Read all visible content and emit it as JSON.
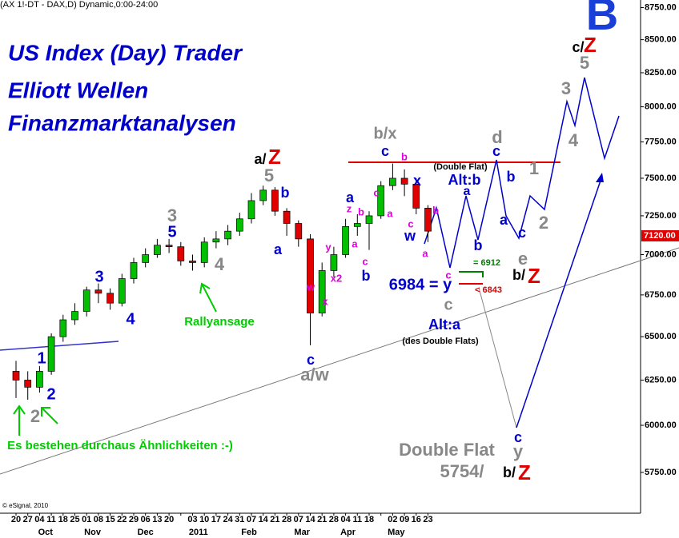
{
  "header": "(AX 1!-DT - DAX,D) Dynamic,0:00-24:00",
  "chart_data": {
    "type": "candlestick",
    "log_scale": true,
    "categories": [
      "20",
      "27",
      "04",
      "11",
      "18",
      "25",
      "01",
      "08",
      "15",
      "22",
      "29",
      "06",
      "13",
      "20",
      null,
      "03",
      "10",
      "17",
      "24",
      "31",
      "07",
      "14",
      "21",
      "28",
      "07",
      "14",
      "21",
      "28",
      "04",
      "11",
      "18",
      null,
      "02",
      "09",
      "16",
      "23"
    ],
    "months": [
      "Oct",
      "Nov",
      "Dec",
      "2011",
      "Feb",
      "Mar",
      "Apr",
      "May"
    ],
    "open": [
      6300,
      6250,
      6210,
      6300,
      6500,
      6600,
      6650,
      6780,
      6760,
      6700,
      6850,
      6950,
      7000,
      7060,
      7050,
      6960,
      6950,
      7080,
      7100,
      7150,
      7230,
      7350,
      7420,
      7280,
      7200,
      7100,
      6640,
      6900,
      7000,
      7180,
      7200,
      7250,
      7450,
      7500,
      7460,
      7300
    ],
    "high": [
      6360,
      6300,
      6330,
      6520,
      6630,
      6700,
      6800,
      6820,
      6790,
      6880,
      6980,
      7040,
      7100,
      7100,
      7080,
      7000,
      7110,
      7150,
      7190,
      7270,
      7400,
      7450,
      7440,
      7300,
      7220,
      7130,
      6950,
      7050,
      7230,
      7260,
      7280,
      7480,
      7600,
      7560,
      7500,
      7320
    ],
    "low": [
      6150,
      6140,
      6180,
      6280,
      6470,
      6570,
      6620,
      6700,
      6660,
      6680,
      6820,
      6920,
      6980,
      7010,
      6930,
      6900,
      6920,
      7040,
      7060,
      7120,
      7200,
      7320,
      7250,
      7120,
      7050,
      6450,
      6620,
      6860,
      6980,
      7120,
      7030,
      7230,
      7420,
      7380,
      7260,
      7080
    ],
    "close": [
      6250,
      6210,
      6300,
      6500,
      6600,
      6650,
      6780,
      6760,
      6700,
      6850,
      6950,
      7000,
      7060,
      7050,
      6960,
      6950,
      7080,
      7100,
      7150,
      7230,
      7350,
      7420,
      7280,
      7200,
      7100,
      6640,
      6900,
      7000,
      7180,
      7200,
      7250,
      7450,
      7500,
      7460,
      7300,
      7150
    ],
    "up_color": "#00c000",
    "down_color": "#e00000",
    "ylim": [
      5550,
      8810
    ],
    "yticks": [
      {
        "value": 5750,
        "label": "5750.00"
      },
      {
        "value": 6000,
        "label": "6000.00"
      },
      {
        "value": 6250,
        "label": "6250.00"
      },
      {
        "value": 6500,
        "label": "6500.00"
      },
      {
        "value": 6750,
        "label": "6750.00"
      },
      {
        "value": 7000,
        "label": "7000.00"
      },
      {
        "value": 7250,
        "label": "7250.00"
      },
      {
        "value": 7500,
        "label": "7500.00"
      },
      {
        "value": 7750,
        "label": "7750.00"
      },
      {
        "value": 8000,
        "label": "8000.00"
      },
      {
        "value": 8250,
        "label": "8250.00"
      },
      {
        "value": 8500,
        "label": "8500.00"
      },
      {
        "value": 8750,
        "label": "8750.00"
      }
    ],
    "last_price": {
      "value": 7120,
      "label": "7120.00"
    }
  },
  "annotations": [
    {
      "text": "US Index (Day) Trader",
      "color": "#0000cc"
    },
    {
      "text": "Elliott Wellen",
      "color": "#0000cc"
    },
    {
      "text": "Finanzmarktanalysen",
      "color": "#0000cc"
    },
    {
      "text": "B",
      "color": "#1a3fd8"
    },
    {
      "text": "c/",
      "color": "#000000"
    },
    {
      "text": "Z",
      "color": "#e00000"
    },
    {
      "text": "5",
      "color": "#888888"
    },
    {
      "text": "3",
      "color": "#888888"
    },
    {
      "text": "4",
      "color": "#888888"
    },
    {
      "text": "d",
      "color": "#888888"
    },
    {
      "text": "c",
      "color": "#0000cc"
    },
    {
      "text": "1",
      "color": "#888888"
    },
    {
      "text": "2",
      "color": "#888888"
    },
    {
      "text": "b",
      "color": "#0000cc"
    },
    {
      "text": "a",
      "color": "#0000cc"
    },
    {
      "text": "c",
      "color": "#0000cc"
    },
    {
      "text": "e",
      "color": "#888888"
    },
    {
      "text": "b/",
      "color": "#000000"
    },
    {
      "text": "Z",
      "color": "#e00000"
    },
    {
      "text": "(Double Flat)",
      "color": "#000000"
    },
    {
      "text": "Alt:b",
      "color": "#0000cc"
    },
    {
      "text": "a",
      "color": "#0000cc"
    },
    {
      "text": "b",
      "color": "#0000cc"
    },
    {
      "text": "= 6912",
      "color": "#008000"
    },
    {
      "text": "< 6843",
      "color": "#e00000"
    },
    {
      "text": "6984 = y",
      "color": "#0000cc"
    },
    {
      "text": "c",
      "color": "#e000e0"
    },
    {
      "text": "c",
      "color": "#888888"
    },
    {
      "text": "Alt:a",
      "color": "#0000cc"
    },
    {
      "text": "(des Double Flats)",
      "color": "#000000"
    },
    {
      "text": "b/x",
      "color": "#888888"
    },
    {
      "text": "c",
      "color": "#0000cc"
    },
    {
      "text": "b",
      "color": "#e000e0"
    },
    {
      "text": "x",
      "color": "#0000cc"
    },
    {
      "text": "a",
      "color": "#0000cc"
    },
    {
      "text": "z",
      "color": "#e000e0"
    },
    {
      "text": "b",
      "color": "#e000e0"
    },
    {
      "text": "c",
      "color": "#e000e0"
    },
    {
      "text": "a",
      "color": "#e000e0"
    },
    {
      "text": "c",
      "color": "#e000e0"
    },
    {
      "text": "w",
      "color": "#0000cc"
    },
    {
      "text": "b",
      "color": "#e000e0"
    },
    {
      "text": "a",
      "color": "#e000e0"
    },
    {
      "text": "a",
      "color": "#e000e0"
    },
    {
      "text": "c",
      "color": "#e000e0"
    },
    {
      "text": "b",
      "color": "#0000cc"
    },
    {
      "text": "y",
      "color": "#e000e0"
    },
    {
      "text": "x2",
      "color": "#e000e0"
    },
    {
      "text": "w",
      "color": "#e000e0"
    },
    {
      "text": "x",
      "color": "#e000e0"
    },
    {
      "text": "c",
      "color": "#0000cc"
    },
    {
      "text": "a/w",
      "color": "#888888"
    },
    {
      "text": "a/",
      "color": "#000000"
    },
    {
      "text": "Z",
      "color": "#e00000"
    },
    {
      "text": "5",
      "color": "#888888"
    },
    {
      "text": "b",
      "color": "#0000cc"
    },
    {
      "text": "a",
      "color": "#0000cc"
    },
    {
      "text": "3",
      "color": "#888888"
    },
    {
      "text": "5",
      "color": "#0000cc"
    },
    {
      "text": "4",
      "color": "#888888"
    },
    {
      "text": "Rallyansage",
      "color": "#00cc00"
    },
    {
      "text": "3",
      "color": "#0000cc"
    },
    {
      "text": "4",
      "color": "#0000cc"
    },
    {
      "text": "1",
      "color": "#0000cc"
    },
    {
      "text": "2",
      "color": "#0000cc"
    },
    {
      "text": "2",
      "color": "#888888"
    },
    {
      "text": "Es bestehen durchaus Ähnlichkeiten :-)",
      "color": "#00cc00"
    },
    {
      "text": "Double Flat",
      "color": "#888888"
    },
    {
      "text": "5754/",
      "color": "#888888"
    },
    {
      "text": "c",
      "color": "#0000cc"
    },
    {
      "text": "y",
      "color": "#888888"
    },
    {
      "text": "b/",
      "color": "#000000"
    },
    {
      "text": "Z",
      "color": "#e00000"
    },
    {
      "text": "© eSignal, 2010",
      "color": "#000000"
    }
  ]
}
